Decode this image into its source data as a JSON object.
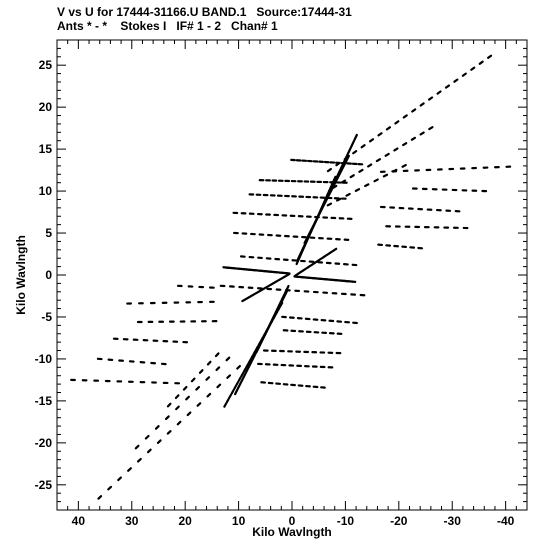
{
  "header": {
    "line1": "V vs U for 17444-31166.U BAND.1   Source:17444-31",
    "line2": "Ants * - *    Stokes I   IF# 1 - 2   Chan# 1"
  },
  "chart_data": {
    "type": "scatter",
    "title": "V vs U for 17444-31166.U BAND.1   Source:17444-31",
    "subtitle": "Ants * - *    Stokes I   IF# 1 - 2   Chan# 1",
    "xlabel": "Kilo Wavlngth",
    "ylabel": "Kilo Wavlngth",
    "xlim": [
      44,
      -44
    ],
    "ylim": [
      -28,
      28
    ],
    "x_reversed": true,
    "x_ticks": [
      40,
      30,
      20,
      10,
      0,
      -10,
      -20,
      -30,
      -40
    ],
    "x_tick_labels": [
      "40",
      "30",
      "20",
      "10",
      "0",
      "-10",
      "-20",
      "-30",
      "-40"
    ],
    "y_ticks": [
      25,
      20,
      15,
      10,
      5,
      0,
      -5,
      -10,
      -15,
      -20,
      -25
    ],
    "y_tick_labels": [
      "25",
      "20",
      "15",
      "10",
      "5",
      "0",
      "-5",
      "-10",
      "-15",
      "-20",
      "-25"
    ],
    "grid": false,
    "marker_color": "#000000",
    "series": [
      {
        "tracks": [
          {
            "from": [
              -0.2,
              13.7
            ],
            "to": [
              -12.8,
              13.2
            ],
            "n": 13
          },
          {
            "from": [
              5.7,
              11.3
            ],
            "to": [
              -9.9,
              11.0
            ],
            "n": 14
          },
          {
            "from": [
              7.6,
              9.6
            ],
            "to": [
              -9.7,
              9.1
            ],
            "n": 14
          },
          {
            "from": [
              10.6,
              7.4
            ],
            "to": [
              -10.8,
              6.7
            ],
            "n": 15
          },
          {
            "from": [
              10.5,
              5.0
            ],
            "to": [
              -10.2,
              4.2
            ],
            "n": 14
          },
          {
            "from": [
              9.2,
              2.2
            ],
            "to": [
              -11.7,
              1.2
            ],
            "n": 14
          },
          {
            "from": [
              13.0,
              -1.3
            ],
            "to": [
              -13.2,
              -2.4
            ],
            "n": 16
          },
          {
            "from": [
              1.5,
              -5.0
            ],
            "to": [
              -11.8,
              -5.7
            ],
            "n": 10
          },
          {
            "from": [
              1.2,
              -6.6
            ],
            "to": [
              -8.9,
              -7.0
            ],
            "n": 8
          },
          {
            "from": [
              4.9,
              -9.0
            ],
            "to": [
              -8.7,
              -9.3
            ],
            "n": 10
          },
          {
            "from": [
              6.0,
              -10.6
            ],
            "to": [
              -7.2,
              -11.0
            ],
            "n": 10
          },
          {
            "from": [
              5.4,
              -12.8
            ],
            "to": [
              -5.8,
              -13.4
            ],
            "n": 9
          },
          {
            "from": [
              -17.0,
              12.3
            ],
            "to": [
              -40.5,
              12.9
            ],
            "n": 12
          },
          {
            "from": [
              -23.0,
              10.3
            ],
            "to": [
              -36.0,
              10.0
            ],
            "n": 8
          },
          {
            "from": [
              -17.0,
              8.1
            ],
            "to": [
              -31.0,
              7.6
            ],
            "n": 9
          },
          {
            "from": [
              -18.0,
              5.8
            ],
            "to": [
              -32.5,
              5.6
            ],
            "n": 9
          },
          {
            "from": [
              -16.5,
              3.6
            ],
            "to": [
              -24.0,
              3.2
            ],
            "n": 6
          },
          {
            "from": [
              41.0,
              -12.5
            ],
            "to": [
              21.5,
              -12.9
            ],
            "n": 10
          },
          {
            "from": [
              36.0,
              -10.0
            ],
            "to": [
              24.0,
              -10.6
            ],
            "n": 7
          },
          {
            "from": [
              33.0,
              -7.6
            ],
            "to": [
              20.0,
              -8.0
            ],
            "n": 8
          },
          {
            "from": [
              28.5,
              -5.6
            ],
            "to": [
              14.5,
              -5.5
            ],
            "n": 8
          },
          {
            "from": [
              30.5,
              -3.4
            ],
            "to": [
              15.0,
              -3.2
            ],
            "n": 8
          },
          {
            "from": [
              21.0,
              -1.3
            ],
            "to": [
              15.0,
              -1.5
            ],
            "n": 4
          },
          {
            "from": [
              -7.0,
              12.5
            ],
            "to": [
              -37.0,
              26.0
            ],
            "n": 20
          },
          {
            "from": [
              -8.0,
              10.5
            ],
            "to": [
              -26.0,
              17.5
            ],
            "n": 12
          },
          {
            "from": [
              -7.0,
              8.4
            ],
            "to": [
              -21.0,
              13.0
            ],
            "n": 9
          },
          {
            "from": [
              36.0,
              -26.5
            ],
            "to": [
              10.0,
              -11.0
            ],
            "n": 15
          },
          {
            "from": [
              29.0,
              -20.5
            ],
            "to": [
              12.0,
              -10.0
            ],
            "n": 10
          },
          {
            "from": [
              23.0,
              -15.5
            ],
            "to": [
              14.0,
              -9.5
            ],
            "n": 7
          },
          {
            "from": [
              -1.2,
              2.0
            ],
            "to": [
              -12.0,
              16.5
            ],
            "n": 34
          },
          {
            "from": [
              -1.0,
              1.5
            ],
            "to": [
              -8.0,
              11.5
            ],
            "n": 24
          },
          {
            "from": [
              -2.5,
              4.0
            ],
            "to": [
              -10.5,
              14.0
            ],
            "n": 22
          },
          {
            "from": [
              1.0,
              -2.0
            ],
            "to": [
              10.5,
              -14.0
            ],
            "n": 30
          },
          {
            "from": [
              0.8,
              -1.5
            ],
            "to": [
              6.5,
              -9.0
            ],
            "n": 20
          },
          {
            "from": [
              2.0,
              -3.5
            ],
            "to": [
              12.5,
              -15.5
            ],
            "n": 24
          },
          {
            "from": [
              12.5,
              0.9
            ],
            "to": [
              0.8,
              0.2
            ],
            "n": 26
          },
          {
            "from": [
              -0.8,
              -0.2
            ],
            "to": [
              -11.5,
              -0.8
            ],
            "n": 24
          },
          {
            "from": [
              9.0,
              -3.0
            ],
            "to": [
              0.8,
              0.0
            ],
            "n": 12
          },
          {
            "from": [
              -0.8,
              0.0
            ],
            "to": [
              -8.0,
              3.0
            ],
            "n": 12
          }
        ]
      }
    ]
  }
}
